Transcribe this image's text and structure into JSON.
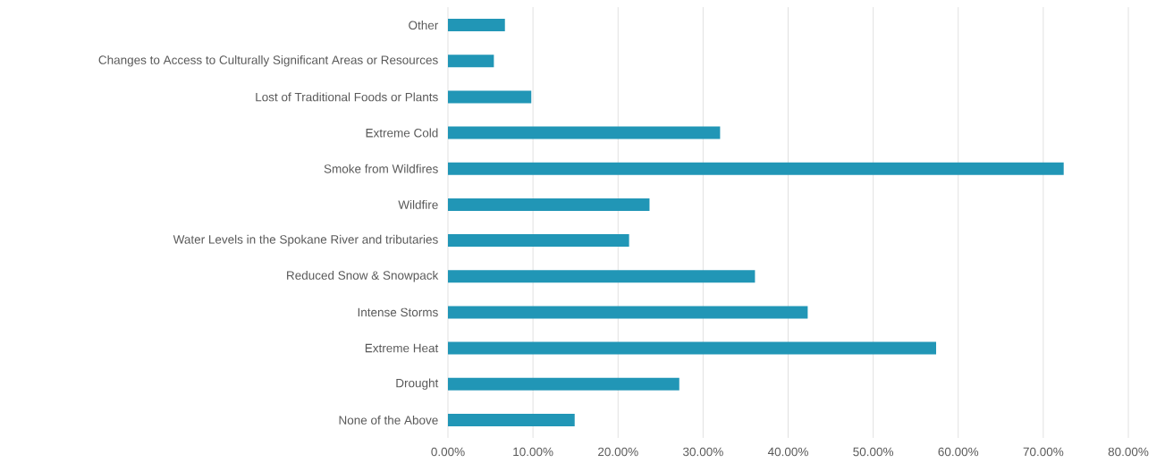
{
  "chart_data": {
    "type": "bar",
    "orientation": "horizontal",
    "categories": [
      "Other",
      "Changes to Access to Culturally Significant Areas or Resources",
      "Lost of Traditional Foods or Plants",
      "Extreme Cold",
      "Smoke from Wildfires",
      "Wildfire",
      "Water Levels in the Spokane River and tributaries",
      "Reduced Snow & Snowpack",
      "Intense Storms",
      "Extreme Heat",
      "Drought",
      "None of the Above"
    ],
    "values": [
      6.7,
      5.4,
      9.8,
      32.0,
      72.4,
      23.7,
      21.3,
      36.1,
      42.3,
      57.4,
      27.2,
      14.9
    ],
    "color": "#2196b6",
    "xlim": [
      0,
      80
    ],
    "xticks": [
      {
        "value": 0,
        "label": "0.00%"
      },
      {
        "value": 10,
        "label": "10.00%"
      },
      {
        "value": 20,
        "label": "20.00%"
      },
      {
        "value": 30,
        "label": "30.00%"
      },
      {
        "value": 40,
        "label": "40.00%"
      },
      {
        "value": 50,
        "label": "50.00%"
      },
      {
        "value": 60,
        "label": "60.00%"
      },
      {
        "value": 70,
        "label": "70.00%"
      },
      {
        "value": 80,
        "label": "80.00%"
      }
    ],
    "grid": "x"
  }
}
